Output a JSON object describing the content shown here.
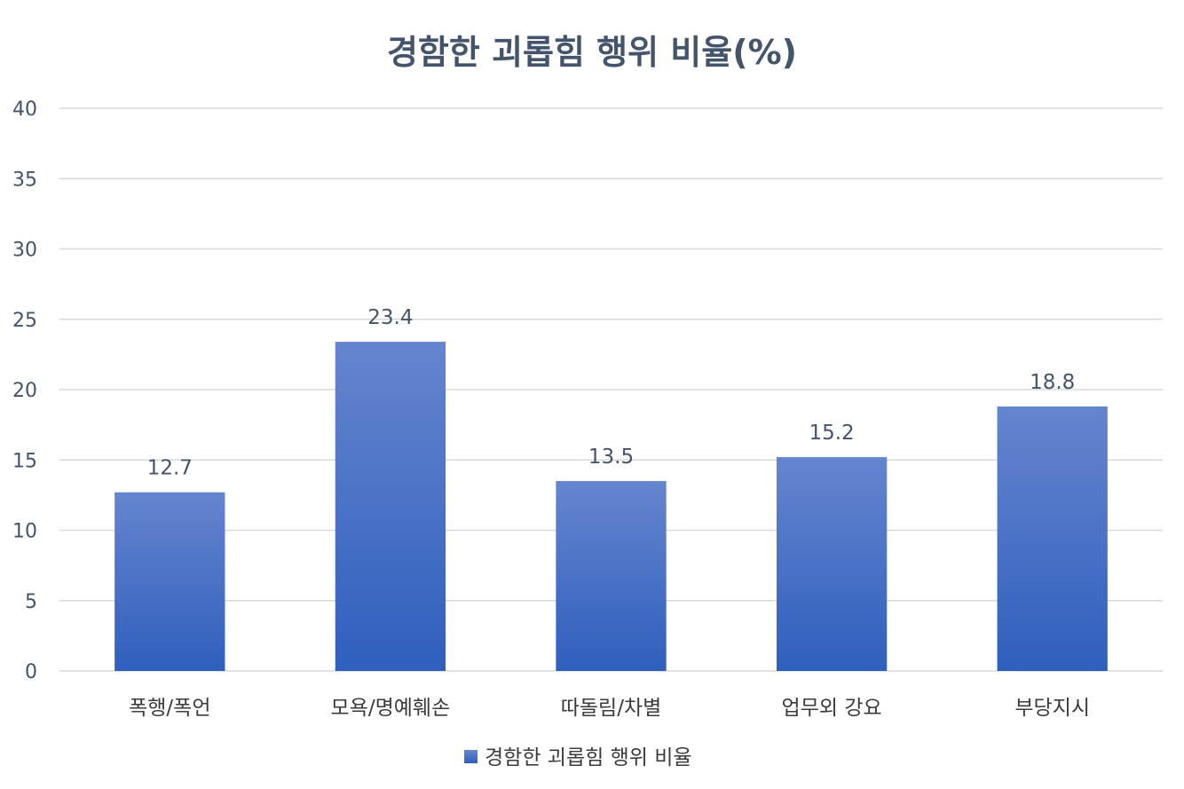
{
  "chart_data": {
    "type": "bar",
    "title": "경함한 괴롭힘 행위 비율(%)",
    "categories": [
      "폭행/폭언",
      "모욕/명예훼손",
      "따돌림/차별",
      "업무외 강요",
      "부당지시"
    ],
    "series": [
      {
        "name": "경함한 괴롭힘 행위 비율",
        "values": [
          12.7,
          23.4,
          13.5,
          15.2,
          18.8
        ]
      }
    ],
    "data_labels": [
      "12.7",
      "23.4",
      "13.5",
      "15.2",
      "18.8"
    ],
    "yticks": [
      "0",
      "5",
      "10",
      "15",
      "20",
      "25",
      "30",
      "35",
      "40"
    ],
    "ylim": [
      0,
      40
    ],
    "grid": true,
    "legend_position": "bottom",
    "colors": {
      "bar_top": "#6585cf",
      "bar_bottom": "#2f5fbd",
      "grid": "#d9d9d9",
      "title": "#44546a"
    }
  }
}
